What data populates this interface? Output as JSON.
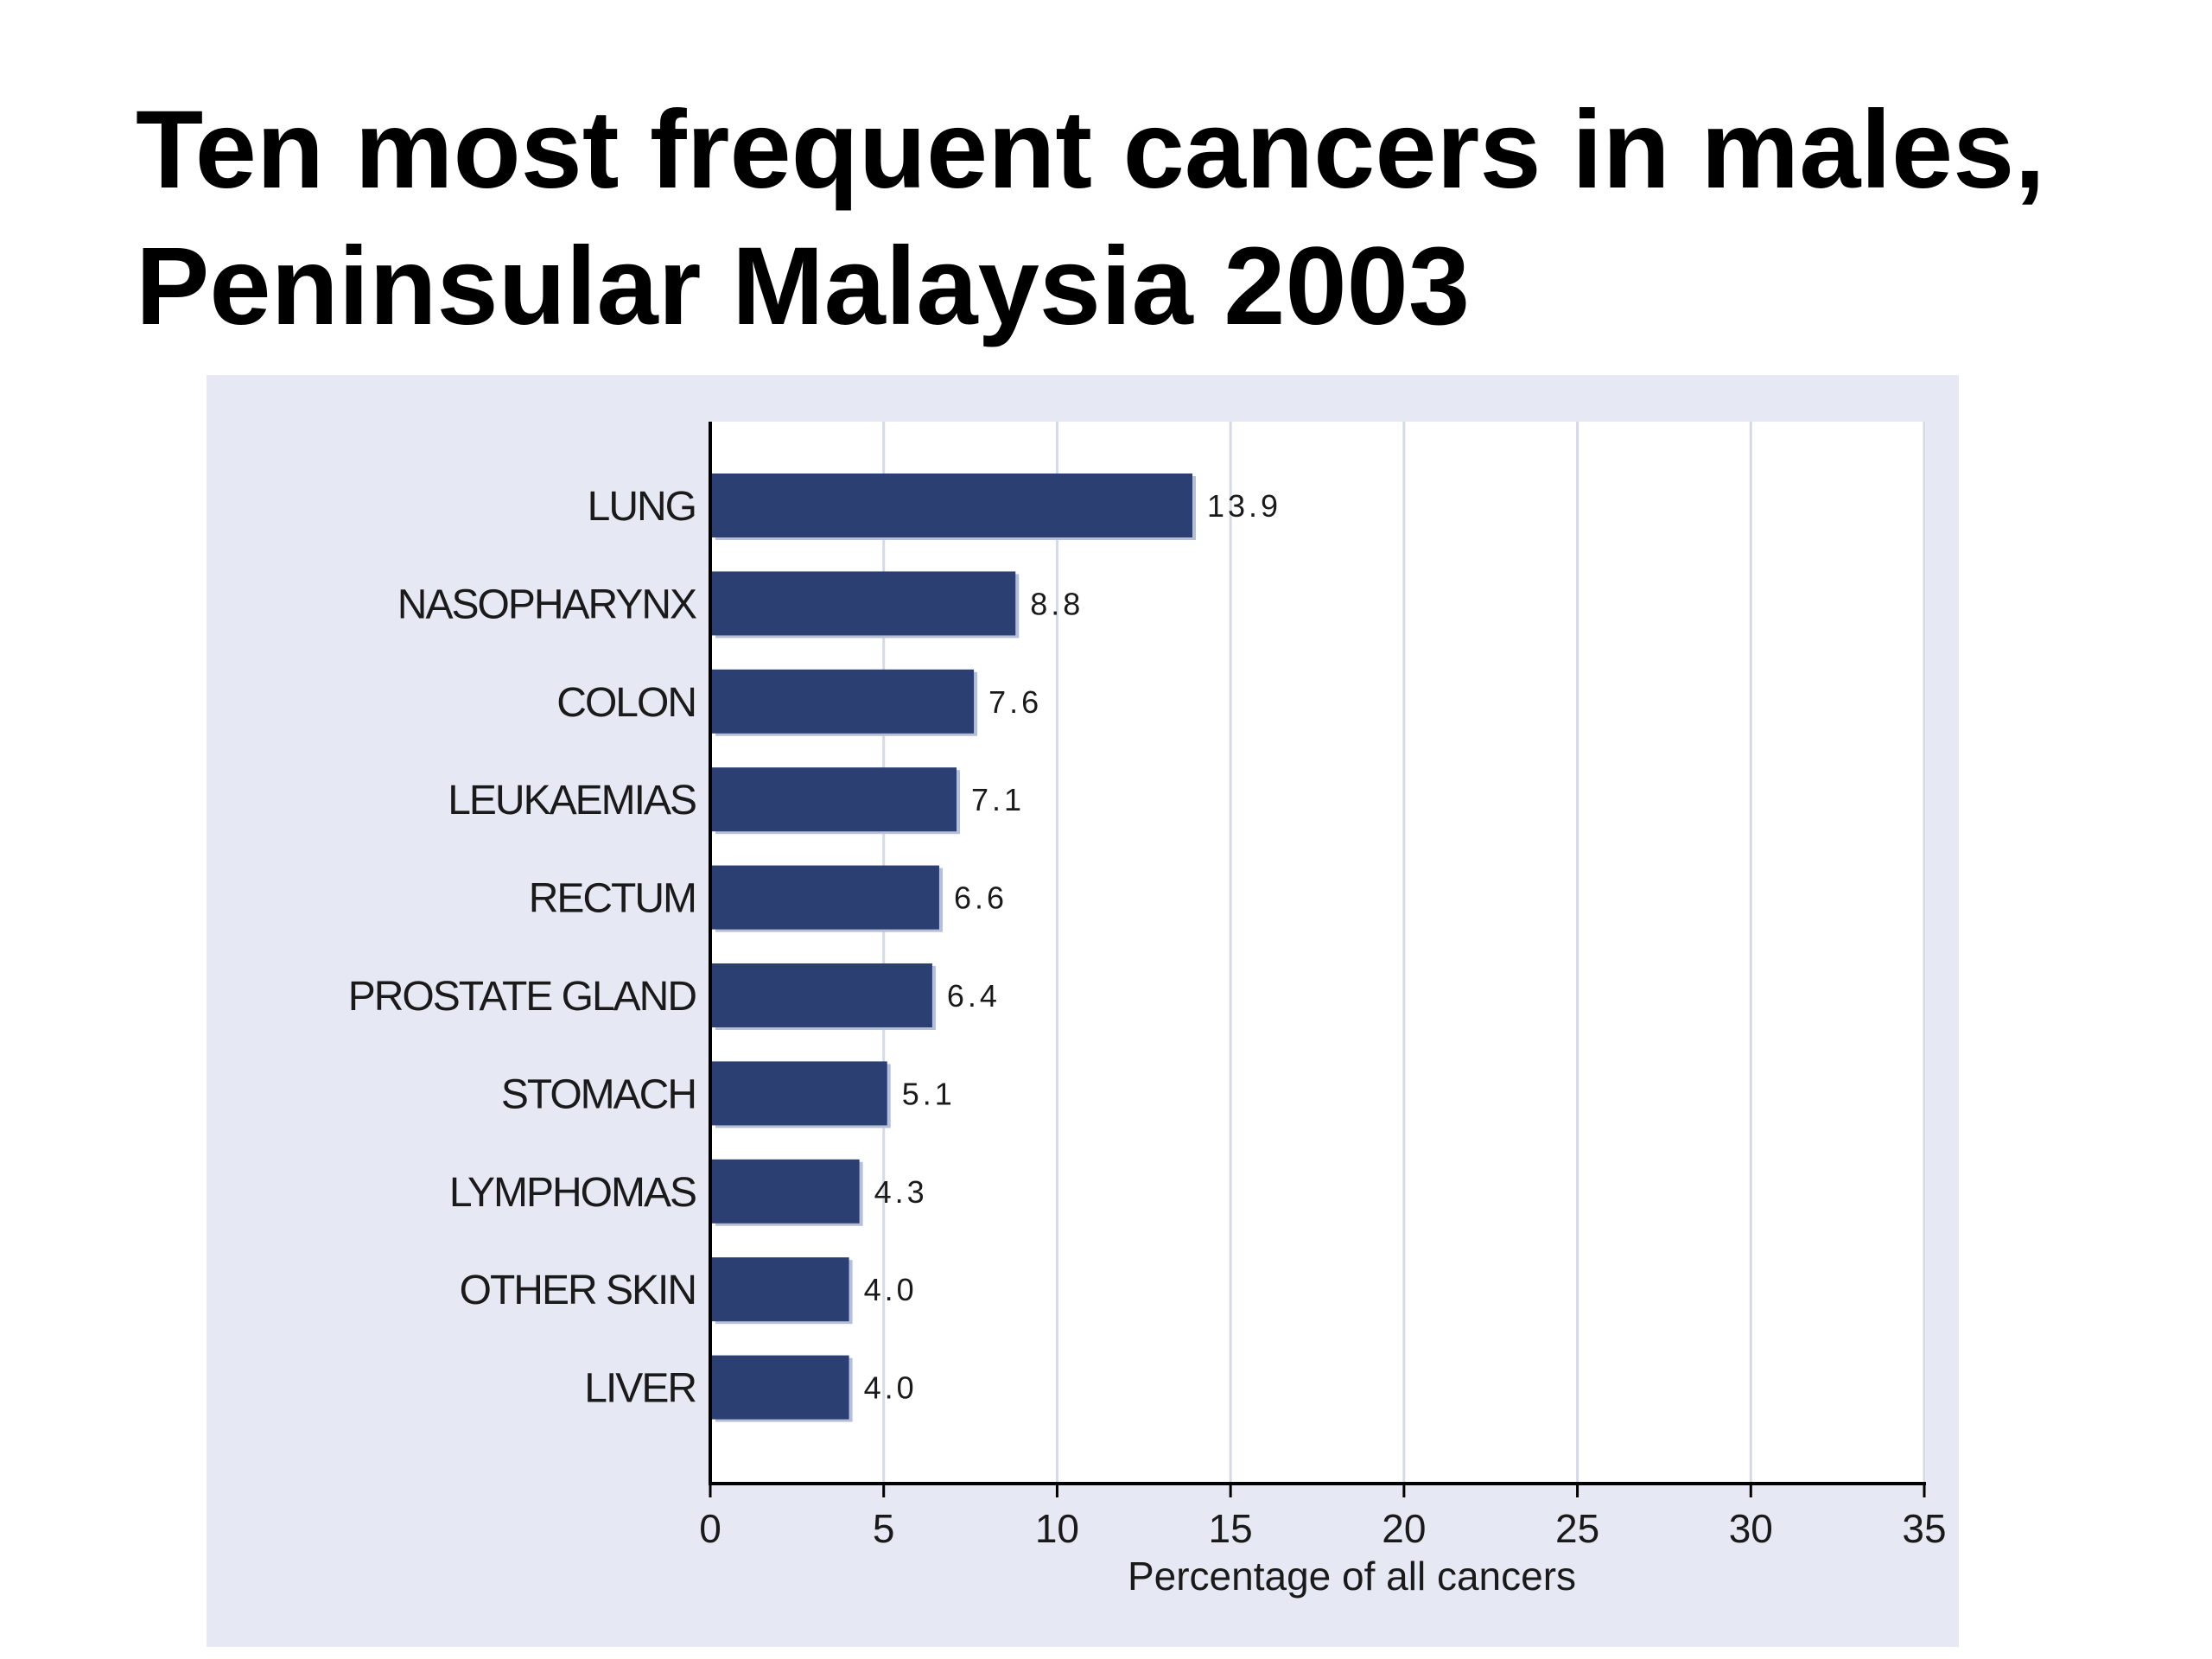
{
  "slide": {
    "title_line1": "Ten most frequent cancers in males,",
    "title_line2": "Peninsular Malaysia 2003"
  },
  "colors": {
    "bar": "#2b3f73",
    "bar_shadow": "#b7bfd6",
    "panel_background": "#e6e9f3",
    "plot_background": "#ffffff",
    "gridline": "#d5dae8",
    "axis": "#000000"
  },
  "chart_data": {
    "type": "bar",
    "orientation": "horizontal",
    "categories": [
      "LUNG",
      "NASOPHARYNX",
      "COLON",
      "LEUKAEMIAS",
      "RECTUM",
      "PROSTATE GLAND",
      "STOMACH",
      "LYMPHOMAS",
      "OTHER SKIN",
      "LIVER"
    ],
    "values": [
      13.9,
      8.8,
      7.6,
      7.1,
      6.6,
      6.4,
      5.1,
      4.3,
      4.0,
      4.0
    ],
    "value_labels": [
      "13.9",
      "8.8",
      "7.6",
      "7.1",
      "6.6",
      "6.4",
      "5.1",
      "4.3",
      "4.0",
      "4.0"
    ],
    "xlabel": "Percentage of all cancers",
    "ylabel": "",
    "xlim": [
      0,
      35
    ],
    "xticks": [
      0,
      5,
      10,
      15,
      20,
      25,
      30,
      35
    ],
    "xtick_labels": [
      "0",
      "5",
      "10",
      "15",
      "20",
      "25",
      "30",
      "35"
    ],
    "grid": "vertical",
    "legend": "none"
  }
}
